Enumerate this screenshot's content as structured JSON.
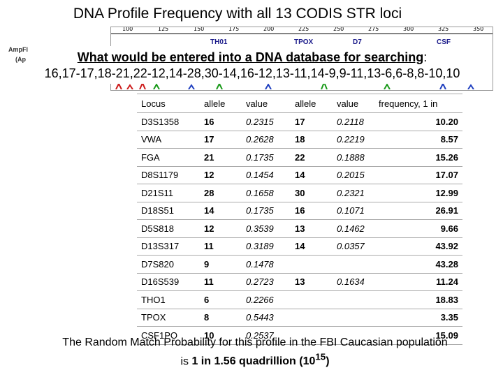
{
  "title": "DNA Profile Frequency with all 13 CODIS STR loci",
  "electropherogram": {
    "scale_ticks": [
      "100",
      "125",
      "150",
      "175",
      "200",
      "225",
      "250",
      "275",
      "300",
      "325",
      "350"
    ],
    "locus_labels": [
      "TH01",
      "TPOX",
      "D7",
      "CSF"
    ],
    "side_label_1": "AmpFlSTR® Identifiler™",
    "side_label_2": "(Ap"
  },
  "banner": {
    "question": "What would be entered into a DNA database for searching",
    "question_suffix": ":",
    "profile": "16,17-17,18-21,22-12,14-28,30-14,16-12,13-11,14-9,9-11,13-6,6-8,8-10,10"
  },
  "table": {
    "headers": [
      "Locus",
      "allele",
      "value",
      "allele",
      "value",
      "frequency, 1 in"
    ],
    "rows": [
      [
        "D3S1358",
        "16",
        "0.2315",
        "17",
        "0.2118",
        "10.20"
      ],
      [
        "VWA",
        "17",
        "0.2628",
        "18",
        "0.2219",
        "8.57"
      ],
      [
        "FGA",
        "21",
        "0.1735",
        "22",
        "0.1888",
        "15.26"
      ],
      [
        "D8S1179",
        "12",
        "0.1454",
        "14",
        "0.2015",
        "17.07"
      ],
      [
        "D21S11",
        "28",
        "0.1658",
        "30",
        "0.2321",
        "12.99"
      ],
      [
        "D18S51",
        "14",
        "0.1735",
        "16",
        "0.1071",
        "26.91"
      ],
      [
        "D5S818",
        "12",
        "0.3539",
        "13",
        "0.1462",
        "9.66"
      ],
      [
        "D13S317",
        "11",
        "0.3189",
        "14",
        "0.0357",
        "43.92"
      ],
      [
        "D7S820",
        "9",
        "0.1478",
        "",
        "",
        "43.28"
      ],
      [
        "D16S539",
        "11",
        "0.2723",
        "13",
        "0.1634",
        "11.24"
      ],
      [
        "THO1",
        "6",
        "0.2266",
        "",
        "",
        "18.83"
      ],
      [
        "TPOX",
        "8",
        "0.5443",
        "",
        "",
        "3.35"
      ],
      [
        "CSF1PO",
        "10",
        "0.2537",
        "",
        "",
        "15.09"
      ]
    ]
  },
  "footer": {
    "line1": "The Random Match Probability for this profile in the FBI Caucasian population",
    "line2_prefix": "is ",
    "line2_value": "1 in 1.56 quadrillion (10",
    "line2_exp": "15",
    "line2_close": ")"
  },
  "colors": {
    "peak_blue": "#1f3fbf",
    "peak_green": "#1a9a1a",
    "peak_red": "#cc1a1a",
    "label_blue": "#1a1a8a"
  }
}
